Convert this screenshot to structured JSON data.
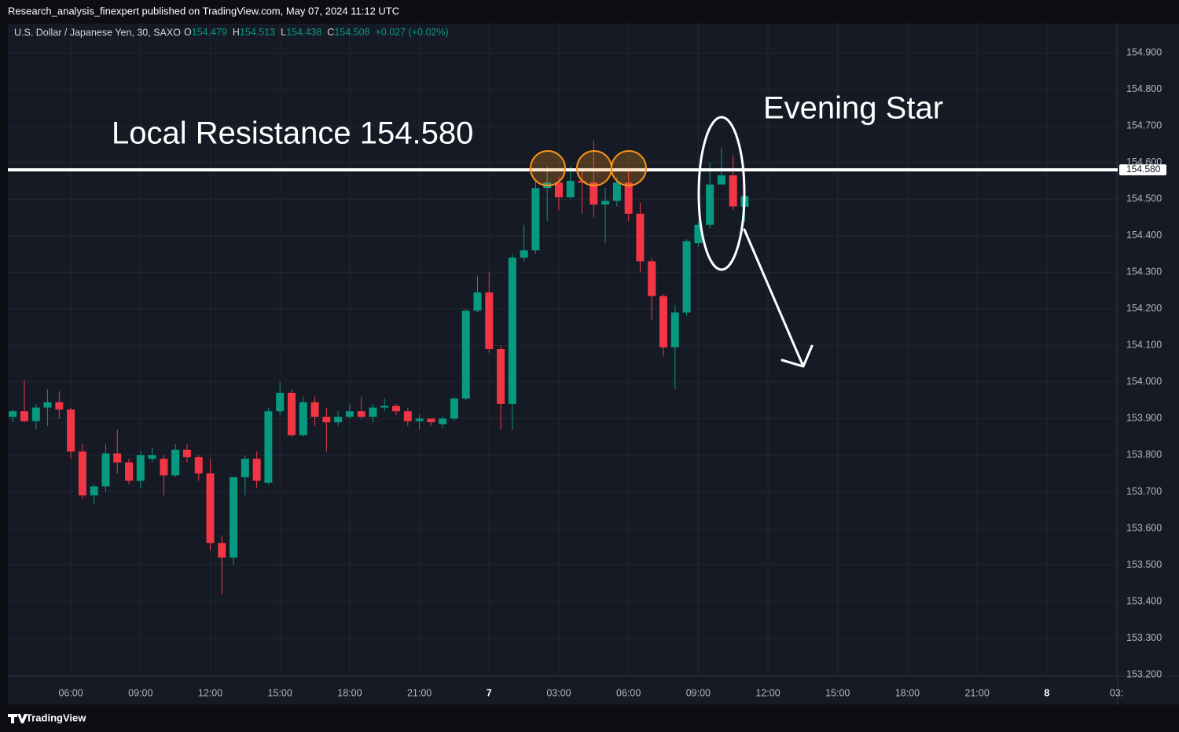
{
  "header": {
    "publisher": "Research_analysis_finexpert published on TradingView.com, May 07, 2024 11:12 UTC",
    "footer": "TradingView"
  },
  "chart_data": {
    "type": "candlestick",
    "symbol": "U.S. Dollar / Japanese Yen, 30, SAXO",
    "ohlc_labels": [
      "O",
      "H",
      "L",
      "C"
    ],
    "ohlc_values": [
      154.479,
      154.513,
      154.438,
      154.508
    ],
    "change": "+0.027 (+0.02%)",
    "up_color": "#089981",
    "down_color": "#f23645",
    "x": [
      3.5,
      4,
      4.5,
      5,
      5.5,
      6,
      6.5,
      7,
      7.5,
      8,
      8.5,
      9,
      9.5,
      10,
      10.5,
      11,
      11.5,
      12,
      12.5,
      13,
      13.5,
      14,
      14.5,
      15,
      15.5,
      16,
      16.5,
      17,
      17.5,
      18,
      18.5,
      19,
      19.5,
      20,
      20.5,
      21,
      21.5,
      22,
      22.5,
      23,
      23.5,
      24,
      24.5,
      25,
      25.5,
      26,
      26.5,
      27,
      27.5,
      28,
      28.5,
      29,
      29.5,
      30,
      30.5,
      31,
      31.5,
      32,
      32.5,
      33,
      33.5,
      34,
      34.5,
      35
    ],
    "open": [
      153.905,
      153.92,
      153.893,
      153.93,
      153.945,
      153.925,
      153.81,
      153.69,
      153.715,
      153.805,
      153.78,
      153.73,
      153.79,
      153.79,
      153.745,
      153.815,
      153.795,
      153.75,
      153.56,
      153.52,
      153.74,
      153.79,
      153.725,
      153.92,
      153.97,
      153.855,
      153.945,
      153.905,
      153.89,
      153.905,
      153.92,
      153.905,
      153.93,
      153.935,
      153.92,
      153.893,
      153.9,
      153.885,
      153.9,
      153.955,
      154.195,
      154.245,
      154.09,
      153.94,
      154.34,
      154.36,
      154.53,
      154.545,
      154.505,
      154.55,
      154.545,
      154.485,
      154.495,
      154.545,
      154.46,
      154.33,
      154.235,
      154.095,
      154.19,
      154.38,
      154.43,
      154.54,
      154.565,
      154.479
    ],
    "high": [
      153.925,
      154.005,
      153.94,
      153.98,
      153.975,
      153.93,
      153.83,
      153.72,
      153.83,
      153.87,
      153.79,
      153.81,
      153.82,
      153.8,
      153.83,
      153.83,
      153.8,
      153.79,
      153.58,
      153.74,
      153.8,
      153.81,
      153.93,
      154.0,
      153.98,
      153.96,
      153.96,
      153.93,
      153.92,
      153.94,
      153.96,
      153.94,
      153.955,
      153.94,
      153.93,
      153.91,
      153.9,
      153.905,
      153.96,
      154.2,
      154.29,
      154.3,
      154.1,
      154.35,
      154.43,
      154.55,
      154.59,
      154.56,
      154.59,
      154.58,
      154.66,
      154.53,
      154.56,
      154.58,
      154.49,
      154.34,
      154.24,
      154.21,
      154.39,
      154.44,
      154.6,
      154.64,
      154.62,
      154.513
    ],
    "low": [
      153.89,
      153.89,
      153.87,
      153.88,
      153.9,
      153.79,
      153.68,
      153.665,
      153.7,
      153.75,
      153.72,
      153.71,
      153.78,
      153.69,
      153.74,
      153.78,
      153.73,
      153.54,
      153.42,
      153.5,
      153.69,
      153.71,
      153.72,
      153.91,
      153.85,
      153.85,
      153.88,
      153.81,
      153.88,
      153.9,
      153.9,
      153.89,
      153.92,
      153.91,
      153.88,
      153.87,
      153.88,
      153.875,
      153.895,
      153.95,
      154.19,
      154.08,
      153.87,
      153.87,
      154.33,
      154.35,
      154.44,
      154.47,
      154.5,
      154.46,
      154.45,
      154.38,
      154.48,
      154.44,
      154.3,
      154.17,
      154.07,
      153.98,
      154.18,
      154.37,
      154.42,
      154.54,
      154.47,
      154.438
    ],
    "close": [
      153.92,
      153.893,
      153.93,
      153.945,
      153.925,
      153.81,
      153.69,
      153.715,
      153.805,
      153.78,
      153.73,
      153.8,
      153.8,
      153.745,
      153.815,
      153.795,
      153.75,
      153.56,
      153.52,
      153.74,
      153.79,
      153.73,
      153.92,
      153.97,
      153.855,
      153.945,
      153.905,
      153.89,
      153.905,
      153.92,
      153.905,
      153.93,
      153.935,
      153.92,
      153.893,
      153.9,
      153.89,
      153.9,
      153.955,
      154.195,
      154.245,
      154.09,
      153.94,
      154.34,
      154.36,
      154.53,
      154.545,
      154.505,
      154.55,
      154.545,
      154.485,
      154.495,
      154.545,
      154.46,
      154.33,
      154.235,
      154.095,
      154.19,
      154.385,
      154.43,
      154.54,
      154.565,
      154.48,
      154.508
    ],
    "xlim": [
      3.29,
      51.05
    ],
    "xticks": [
      {
        "value": 6,
        "label": "06:00"
      },
      {
        "value": 9,
        "label": "09:00"
      },
      {
        "value": 12,
        "label": "12:00"
      },
      {
        "value": 15,
        "label": "15:00"
      },
      {
        "value": 18,
        "label": "18:00"
      },
      {
        "value": 21,
        "label": "21:00"
      },
      {
        "value": 24,
        "label": "7"
      },
      {
        "value": 27,
        "label": "03:00"
      },
      {
        "value": 30,
        "label": "06:00"
      },
      {
        "value": 33,
        "label": "09:00"
      },
      {
        "value": 36,
        "label": "12:00"
      },
      {
        "value": 39,
        "label": "15:00"
      },
      {
        "value": 42,
        "label": "18:00"
      },
      {
        "value": 45,
        "label": "21:00"
      },
      {
        "value": 48,
        "label": "8"
      },
      {
        "value": 51,
        "label": "03:"
      }
    ],
    "ylim": [
      153.196,
      154.926
    ],
    "yticks": [
      {
        "value": 153.2,
        "label": "153.200"
      },
      {
        "value": 153.3,
        "label": "153.300"
      },
      {
        "value": 153.4,
        "label": "153.400"
      },
      {
        "value": 153.5,
        "label": "153.500"
      },
      {
        "value": 153.6,
        "label": "153.600"
      },
      {
        "value": 153.7,
        "label": "153.700"
      },
      {
        "value": 153.8,
        "label": "153.800"
      },
      {
        "value": 153.9,
        "label": "153.900"
      },
      {
        "value": 154.0,
        "label": "154.000"
      },
      {
        "value": 154.1,
        "label": "154.100"
      },
      {
        "value": 154.2,
        "label": "154.200"
      },
      {
        "value": 154.3,
        "label": "154.300"
      },
      {
        "value": 154.4,
        "label": "154.400"
      },
      {
        "value": 154.5,
        "label": "154.500"
      },
      {
        "value": 154.6,
        "label": "154.600"
      },
      {
        "value": 154.7,
        "label": "154.700"
      },
      {
        "value": 154.8,
        "label": "154.800"
      },
      {
        "value": 154.9,
        "label": "154.900"
      }
    ],
    "grid": true,
    "resistance": {
      "value": 154.58,
      "label": "154.580"
    },
    "annotations": [
      "Local Resistance 154.580",
      "Evening Star"
    ]
  }
}
